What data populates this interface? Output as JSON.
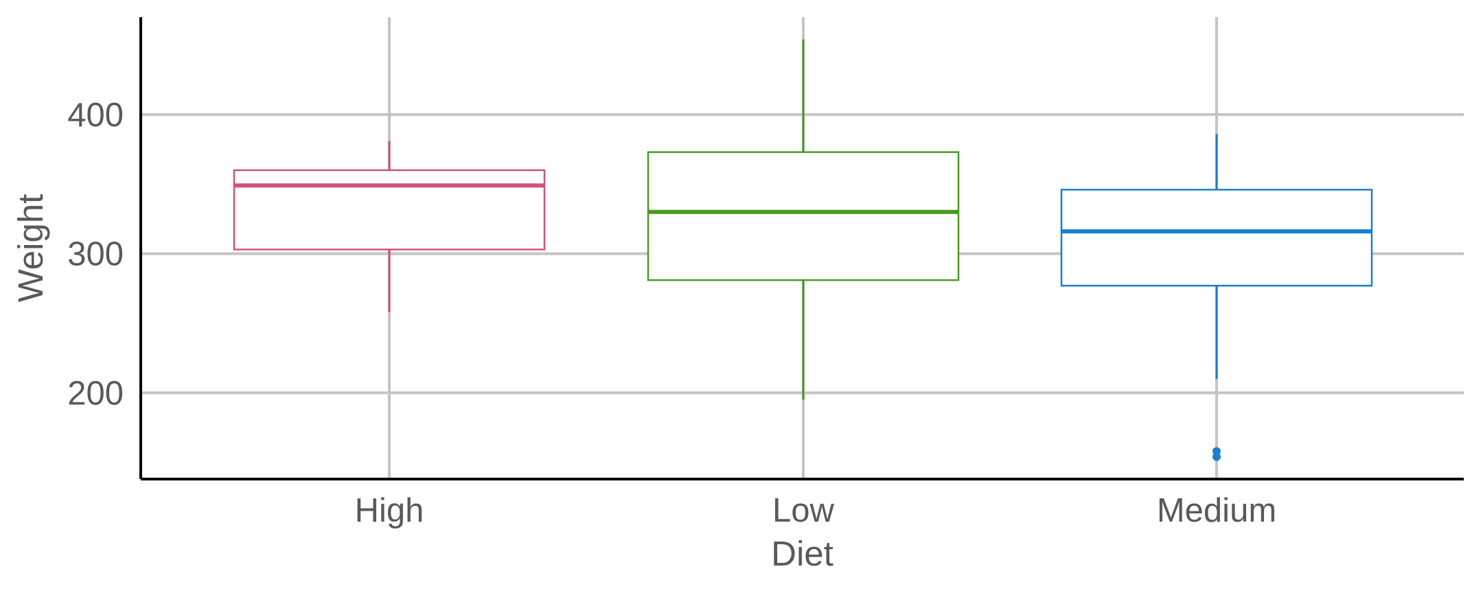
{
  "chart_data": {
    "type": "boxplot",
    "title": "",
    "xlabel": "Diet",
    "ylabel": "Weight",
    "ylim": [
      138,
      470
    ],
    "yticks": [
      200,
      300,
      400
    ],
    "grid": true,
    "categories": [
      "High",
      "Low",
      "Medium"
    ],
    "boxes": [
      {
        "category": "High",
        "color": "#d1507a",
        "whisker_low": 258,
        "q1": 303,
        "median": 349,
        "q3": 360,
        "whisker_high": 381,
        "outliers": []
      },
      {
        "category": "Low",
        "color": "#4a9a1e",
        "whisker_low": 195,
        "q1": 281,
        "median": 330,
        "q3": 373,
        "whisker_high": 454,
        "outliers": []
      },
      {
        "category": "Medium",
        "color": "#1a7fcf",
        "whisker_low": 210,
        "q1": 277,
        "median": 316,
        "q3": 346,
        "whisker_high": 386,
        "outliers": [
          158,
          154
        ]
      }
    ]
  }
}
